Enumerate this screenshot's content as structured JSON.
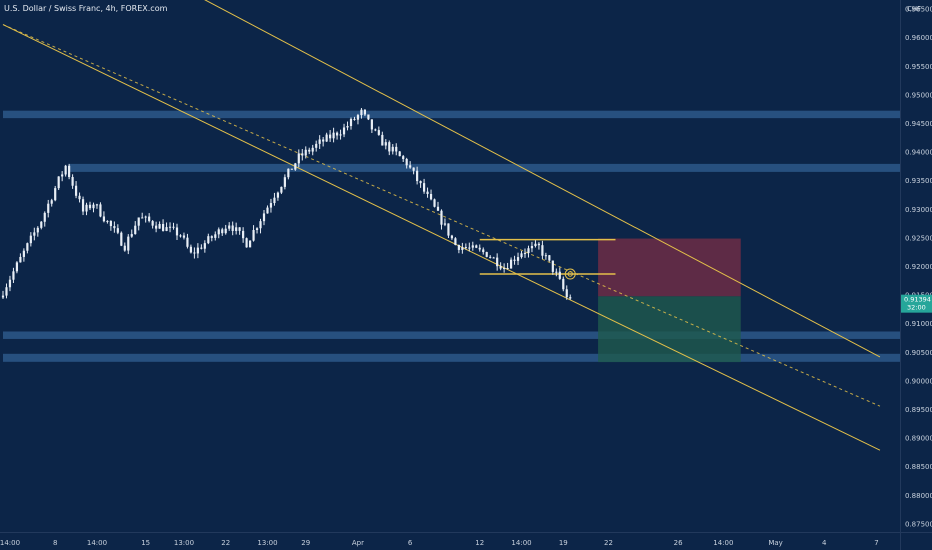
{
  "header": {
    "title": "U.S. Dollar / Swiss Franc, 4h, FOREX.com"
  },
  "colors": {
    "background": "#0c2548",
    "candle": "#e8eef6",
    "zone": "#3a6ea5",
    "channel": "#e3c04a",
    "stop_box": "#7a2d45",
    "target_box": "#1f5a4e",
    "price_badge": "#26a69a"
  },
  "chart_data": {
    "type": "candlestick",
    "symbol": "U.S. Dollar / Swiss Franc",
    "timeframe": "4h",
    "source": "FOREX.com",
    "currency_label": "CHF",
    "y_ticks": [
      "0.96500",
      "0.96000",
      "0.95500",
      "0.95000",
      "0.94500",
      "0.94000",
      "0.93500",
      "0.93000",
      "0.92500",
      "0.92000",
      "0.91500",
      "0.91000",
      "0.90500",
      "0.90000",
      "0.89500",
      "0.89000",
      "0.88500",
      "0.88000",
      "0.87500"
    ],
    "x_ticks": [
      "14:00",
      "8",
      "14:00",
      "15",
      "13:00",
      "22",
      "13:00",
      "29",
      "Apr",
      "6",
      "12",
      "14:00",
      "19",
      "22",
      "26",
      "14:00",
      "May",
      "4",
      "7"
    ],
    "ylim": [
      0.8735,
      0.9665
    ],
    "current_price": {
      "value": "0.91394",
      "countdown": "32:00"
    },
    "close_path": [
      [
        0,
        0.9145
      ],
      [
        8,
        0.9235
      ],
      [
        12,
        0.928
      ],
      [
        17,
        0.935
      ],
      [
        19,
        0.9375
      ],
      [
        24,
        0.9295
      ],
      [
        27,
        0.931
      ],
      [
        36,
        0.9235
      ],
      [
        40,
        0.9285
      ],
      [
        52,
        0.9255
      ],
      [
        55,
        0.922
      ],
      [
        66,
        0.9275
      ],
      [
        71,
        0.924
      ],
      [
        79,
        0.9325
      ],
      [
        86,
        0.939
      ],
      [
        92,
        0.9415
      ],
      [
        99,
        0.944
      ],
      [
        104,
        0.9468
      ],
      [
        109,
        0.9422
      ],
      [
        117,
        0.938
      ],
      [
        125,
        0.93
      ],
      [
        131,
        0.9237
      ],
      [
        140,
        0.9222
      ],
      [
        145,
        0.9198
      ],
      [
        150,
        0.9225
      ],
      [
        155,
        0.9233
      ],
      [
        160,
        0.9185
      ],
      [
        163,
        0.9145
      ]
    ],
    "bars_count": 164,
    "x_tick_bars": [
      2,
      15,
      27,
      41,
      52,
      64,
      76,
      87,
      102,
      117,
      137,
      149,
      161,
      174,
      194,
      207,
      222,
      236,
      251
    ],
    "horizontal_zones": [
      {
        "from": 0.9462,
        "to": 0.9468,
        "start_bar": 0
      },
      {
        "from": 0.9368,
        "to": 0.9375,
        "start_bar": 19
      },
      {
        "from": 0.9076,
        "to": 0.9082,
        "start_bar": 0
      },
      {
        "from": 0.9036,
        "to": 0.9043,
        "start_bar": 0
      }
    ],
    "channel": [
      {
        "style": "solid",
        "p1": [
          0,
          0.9852
        ],
        "p2": [
          252,
          0.9041
        ]
      },
      {
        "style": "dashed",
        "p1": [
          0,
          0.9622
        ],
        "p2": [
          252,
          0.8955
        ]
      },
      {
        "style": "solid",
        "p1": [
          0,
          0.9622
        ],
        "p2": [
          252,
          0.8878
        ]
      }
    ],
    "range_box": {
      "top": 0.9246,
      "bottom": 0.9186,
      "start_bar": 137,
      "end_bar": 176
    },
    "position": {
      "entry": 0.9147,
      "stop": 0.9248,
      "target": 0.9032,
      "start_bar": 171,
      "end_bar": 212
    }
  }
}
